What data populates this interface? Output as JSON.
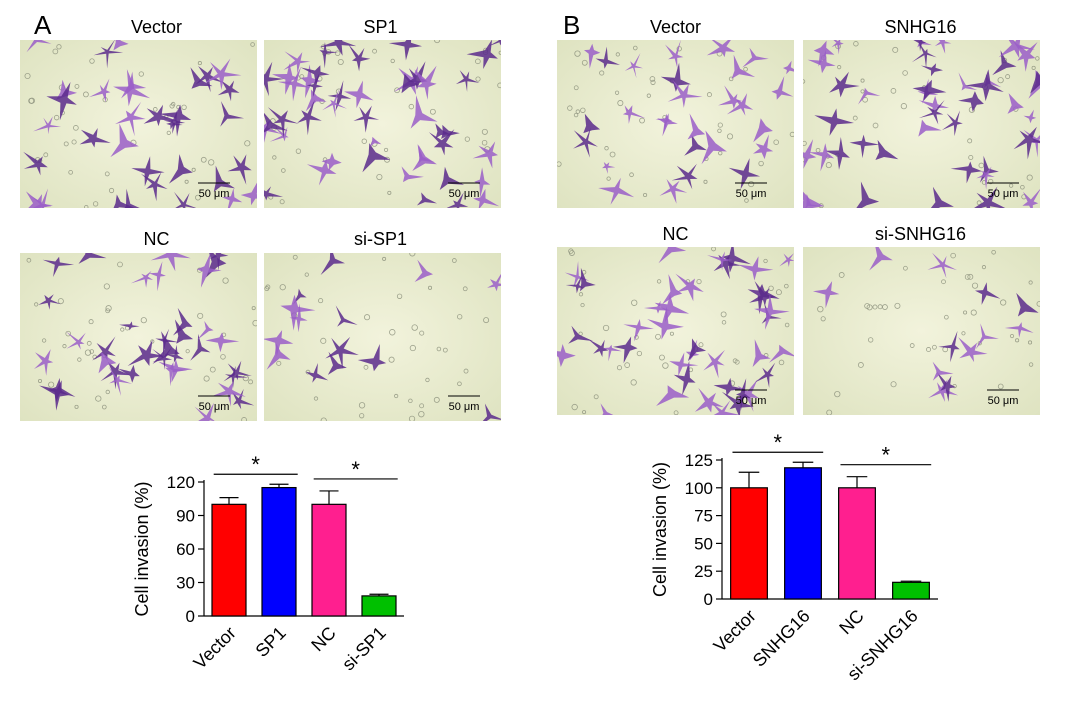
{
  "panels": [
    {
      "letter": "A",
      "labels": [
        "Vector",
        "SP1",
        "NC",
        "si-SP1"
      ],
      "scale_text": "50 μm"
    },
    {
      "letter": "B",
      "labels": [
        "Vector",
        "SNHG16",
        "NC",
        "si-SNHG16"
      ],
      "scale_text": "50 μm"
    }
  ],
  "colors": {
    "stain_dark": "#5b2a8c",
    "stain_light": "#9a5ec8",
    "background": "#eef0cf"
  },
  "chart_data": [
    {
      "type": "bar",
      "categories": [
        "Vector",
        "SP1",
        "NC",
        "si-SP1"
      ],
      "values": [
        100,
        115,
        100,
        18
      ],
      "errors": [
        6,
        3,
        12,
        1.5
      ],
      "colors": [
        "#ff0000",
        "#0000ff",
        "#ff1f8f",
        "#00c000"
      ],
      "ylabel": "Cell invasion (%)",
      "ylim": [
        0,
        120
      ],
      "yticks": [
        0,
        30,
        60,
        90,
        120
      ],
      "significance": [
        {
          "pair": [
            0,
            1
          ],
          "label": "*"
        },
        {
          "pair": [
            2,
            3
          ],
          "label": "*"
        }
      ]
    },
    {
      "type": "bar",
      "categories": [
        "Vector",
        "SNHG16",
        "NC",
        "si-SNHG16"
      ],
      "values": [
        100,
        118,
        100,
        15
      ],
      "errors": [
        14,
        5,
        10,
        1
      ],
      "colors": [
        "#ff0000",
        "#0000ff",
        "#ff1f8f",
        "#00c000"
      ],
      "ylabel": "Cell invasion (%)",
      "ylim": [
        0,
        125
      ],
      "yticks": [
        0,
        25,
        50,
        75,
        100,
        125
      ],
      "significance": [
        {
          "pair": [
            0,
            1
          ],
          "label": "*"
        },
        {
          "pair": [
            2,
            3
          ],
          "label": "*"
        }
      ]
    }
  ]
}
